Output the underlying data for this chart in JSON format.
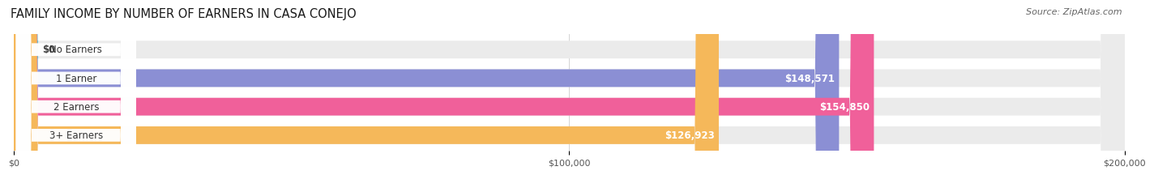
{
  "title": "FAMILY INCOME BY NUMBER OF EARNERS IN CASA CONEJO",
  "source": "Source: ZipAtlas.com",
  "categories": [
    "No Earners",
    "1 Earner",
    "2 Earners",
    "3+ Earners"
  ],
  "values": [
    0,
    148571,
    154850,
    126923
  ],
  "labels": [
    "$0",
    "$148,571",
    "$154,850",
    "$126,923"
  ],
  "bar_colors": [
    "#5ecfcf",
    "#8b8fd4",
    "#f0609a",
    "#f5b85a"
  ],
  "bar_bg_color": "#ebebeb",
  "xlim": [
    0,
    200000
  ],
  "xtick_labels": [
    "$0",
    "$100,000",
    "$200,000"
  ],
  "title_fontsize": 10.5,
  "source_fontsize": 8,
  "label_fontsize": 8.5,
  "cat_fontsize": 8.5,
  "background_color": "#ffffff",
  "bar_height": 0.62,
  "no_earner_small_val": 3500
}
